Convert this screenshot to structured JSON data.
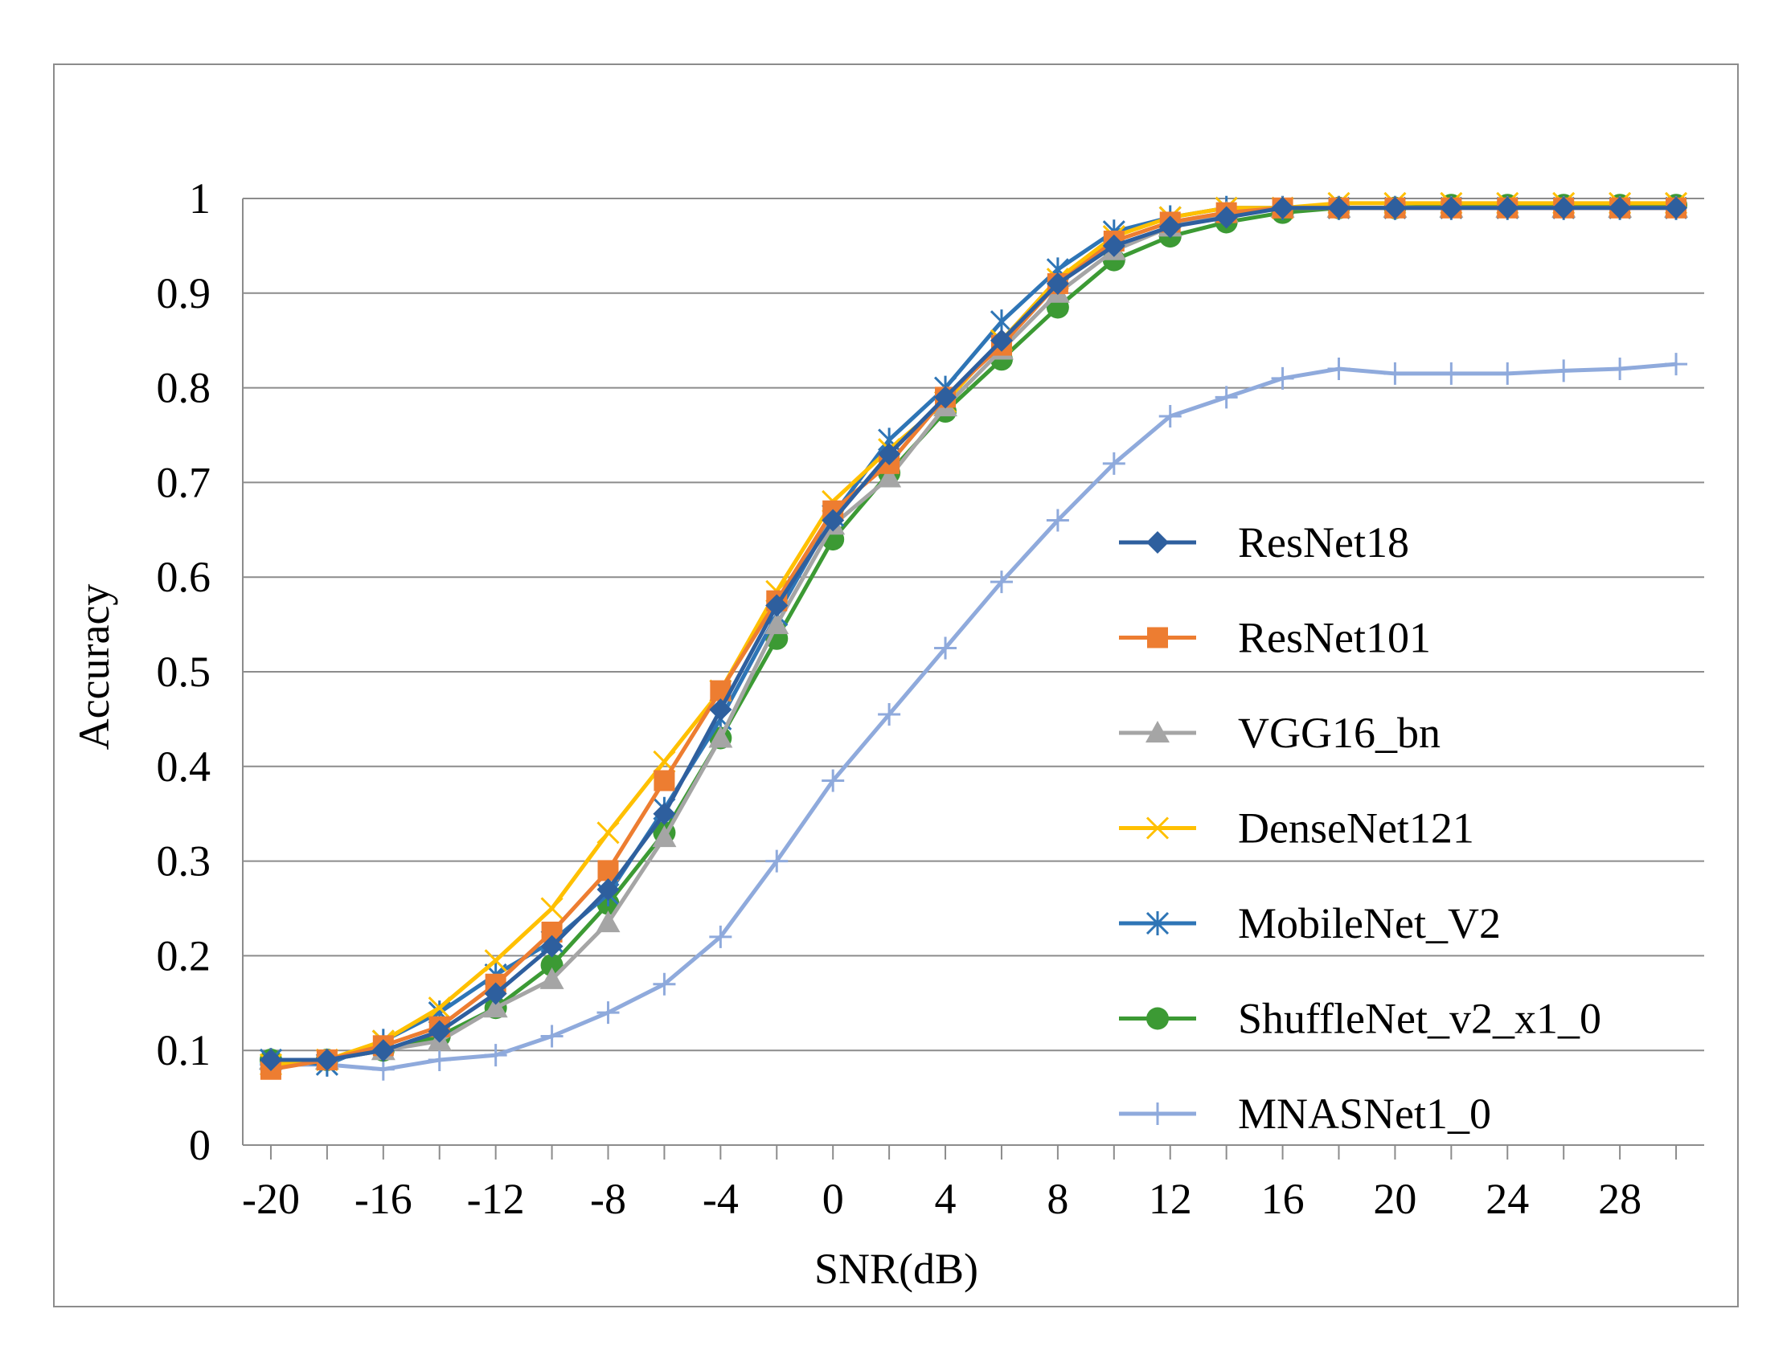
{
  "chart_data": {
    "type": "line",
    "title": "",
    "xlabel": "SNR(dB)",
    "ylabel": "Accuracy",
    "x": [
      -20,
      -18,
      -16,
      -14,
      -12,
      -10,
      -8,
      -6,
      -4,
      -2,
      0,
      2,
      4,
      6,
      8,
      10,
      12,
      14,
      16,
      18,
      20,
      22,
      24,
      26,
      28,
      30
    ],
    "xlim": [
      -21,
      31
    ],
    "ylim": [
      0,
      1
    ],
    "x_ticks": [
      -20,
      -16,
      -12,
      -8,
      -4,
      0,
      4,
      8,
      12,
      16,
      20,
      24,
      28
    ],
    "y_ticks": [
      0,
      0.1,
      0.2,
      0.3,
      0.4,
      0.5,
      0.6,
      0.7,
      0.8,
      0.9,
      1
    ],
    "x_tick_labels": [
      "-20",
      "-16",
      "-12",
      "-8",
      "-4",
      "0",
      "4",
      "8",
      "12",
      "16",
      "20",
      "24",
      "28"
    ],
    "y_tick_labels": [
      "0",
      "0.1",
      "0.2",
      "0.3",
      "0.4",
      "0.5",
      "0.6",
      "0.7",
      "0.8",
      "0.9",
      "1"
    ],
    "grid": "horizontal",
    "legend_position": "right",
    "series": [
      {
        "name": "ResNet18",
        "color": "#2e5f9e",
        "marker": "diamond",
        "values": [
          0.09,
          0.09,
          0.1,
          0.12,
          0.16,
          0.21,
          0.27,
          0.35,
          0.46,
          0.57,
          0.66,
          0.73,
          0.79,
          0.85,
          0.91,
          0.95,
          0.97,
          0.98,
          0.99,
          0.99,
          0.99,
          0.99,
          0.99,
          0.99,
          0.99,
          0.99
        ]
      },
      {
        "name": "ResNet101",
        "color": "#ed7d31",
        "marker": "square",
        "values": [
          0.08,
          0.09,
          0.105,
          0.125,
          0.17,
          0.225,
          0.29,
          0.385,
          0.48,
          0.575,
          0.67,
          0.72,
          0.79,
          0.845,
          0.91,
          0.955,
          0.975,
          0.985,
          0.99,
          0.99,
          0.99,
          0.99,
          0.99,
          0.99,
          0.99,
          0.99
        ]
      },
      {
        "name": "VGG16_bn",
        "color": "#a5a5a5",
        "marker": "triangle",
        "values": [
          0.09,
          0.09,
          0.1,
          0.11,
          0.145,
          0.175,
          0.235,
          0.325,
          0.43,
          0.55,
          0.655,
          0.705,
          0.78,
          0.84,
          0.9,
          0.945,
          0.97,
          0.985,
          0.99,
          0.99,
          0.99,
          0.99,
          0.99,
          0.99,
          0.99,
          0.99
        ]
      },
      {
        "name": "DenseNet121",
        "color": "#ffc000",
        "marker": "x",
        "values": [
          0.085,
          0.09,
          0.11,
          0.145,
          0.195,
          0.25,
          0.33,
          0.405,
          0.48,
          0.585,
          0.68,
          0.735,
          0.785,
          0.85,
          0.915,
          0.96,
          0.98,
          0.99,
          0.99,
          0.995,
          0.995,
          0.995,
          0.995,
          0.995,
          0.995,
          0.995
        ]
      },
      {
        "name": "MobileNet_V2",
        "color": "#2e75b6",
        "marker": "asterisk",
        "values": [
          0.09,
          0.085,
          0.11,
          0.14,
          0.18,
          0.215,
          0.265,
          0.355,
          0.45,
          0.56,
          0.665,
          0.745,
          0.8,
          0.87,
          0.925,
          0.965,
          0.98,
          0.99,
          0.99,
          0.99,
          0.99,
          0.99,
          0.99,
          0.99,
          0.99,
          0.99
        ]
      },
      {
        "name": "ShuffleNet_v2_x1_0",
        "color": "#3c9a34",
        "marker": "circle",
        "values": [
          0.09,
          0.09,
          0.1,
          0.115,
          0.145,
          0.19,
          0.255,
          0.33,
          0.43,
          0.535,
          0.64,
          0.71,
          0.775,
          0.83,
          0.885,
          0.935,
          0.96,
          0.975,
          0.985,
          0.99,
          0.99,
          0.993,
          0.993,
          0.993,
          0.993,
          0.993
        ]
      },
      {
        "name": "MNASNet1_0",
        "color": "#8faadc",
        "marker": "plus",
        "values": [
          0.085,
          0.085,
          0.08,
          0.09,
          0.095,
          0.115,
          0.14,
          0.17,
          0.22,
          0.3,
          0.385,
          0.455,
          0.525,
          0.595,
          0.66,
          0.72,
          0.77,
          0.79,
          0.81,
          0.82,
          0.815,
          0.815,
          0.815,
          0.818,
          0.82,
          0.825
        ]
      }
    ]
  }
}
